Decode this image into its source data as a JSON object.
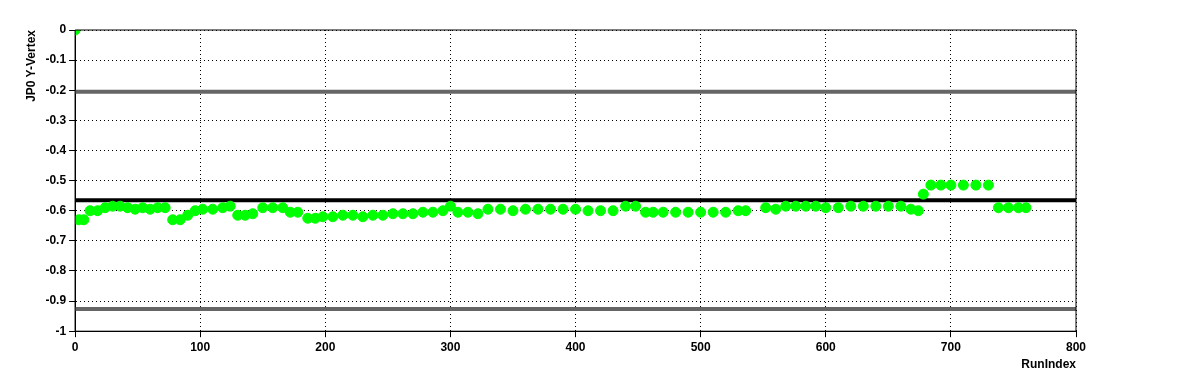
{
  "chart_data": {
    "type": "scatter",
    "xlabel": "RunIndex",
    "ylabel": "JP0 Y-Vertex",
    "xlim": [
      0,
      800
    ],
    "xticks": [
      0,
      100,
      200,
      300,
      400,
      500,
      600,
      700,
      800
    ],
    "ylim": [
      -1,
      0
    ],
    "yticks": [
      -1,
      -0.9,
      -0.8,
      -0.7,
      -0.6,
      -0.5,
      -0.4,
      -0.3,
      -0.2,
      -0.1,
      0
    ],
    "grid": true,
    "legend": false,
    "marker": "circle",
    "ref_lines": [
      {
        "axis": "y",
        "value": -0.205,
        "color": "#666666"
      },
      {
        "axis": "y",
        "value": -0.565,
        "color": "#000000"
      },
      {
        "axis": "y",
        "value": -0.926,
        "color": "#666666"
      }
    ],
    "series": [
      {
        "color": "#00ff00",
        "x": [
          0,
          3,
          7,
          12,
          18,
          24,
          30,
          36,
          42,
          48,
          54,
          60,
          66,
          72,
          78,
          84,
          90,
          96,
          102,
          110,
          118,
          124,
          130,
          136,
          142,
          150,
          158,
          166,
          172,
          178,
          186,
          192,
          198,
          206,
          214,
          222,
          230,
          238,
          246,
          254,
          262,
          270,
          278,
          286,
          294,
          300,
          306,
          314,
          322,
          330,
          340,
          350,
          360,
          370,
          380,
          390,
          400,
          410,
          420,
          430,
          440,
          448,
          456,
          462,
          470,
          480,
          490,
          500,
          510,
          520,
          530,
          536,
          552,
          560,
          568,
          576,
          584,
          592,
          600,
          610,
          620,
          630,
          640,
          650,
          660,
          668,
          674,
          678,
          684,
          692,
          700,
          710,
          720,
          730,
          738,
          746,
          754,
          760
        ],
        "values": [
          0,
          -0.63,
          -0.63,
          -0.6,
          -0.6,
          -0.59,
          -0.585,
          -0.585,
          -0.59,
          -0.595,
          -0.59,
          -0.595,
          -0.59,
          -0.59,
          -0.63,
          -0.63,
          -0.615,
          -0.6,
          -0.595,
          -0.595,
          -0.59,
          -0.585,
          -0.615,
          -0.615,
          -0.61,
          -0.59,
          -0.59,
          -0.59,
          -0.605,
          -0.605,
          -0.625,
          -0.625,
          -0.62,
          -0.62,
          -0.615,
          -0.615,
          -0.62,
          -0.615,
          -0.615,
          -0.61,
          -0.61,
          -0.61,
          -0.605,
          -0.605,
          -0.6,
          -0.585,
          -0.605,
          -0.605,
          -0.61,
          -0.595,
          -0.595,
          -0.6,
          -0.595,
          -0.595,
          -0.595,
          -0.595,
          -0.595,
          -0.6,
          -0.6,
          -0.6,
          -0.585,
          -0.585,
          -0.605,
          -0.605,
          -0.605,
          -0.605,
          -0.605,
          -0.605,
          -0.605,
          -0.605,
          -0.6,
          -0.6,
          -0.59,
          -0.595,
          -0.585,
          -0.585,
          -0.585,
          -0.585,
          -0.59,
          -0.59,
          -0.585,
          -0.585,
          -0.585,
          -0.585,
          -0.585,
          -0.595,
          -0.6,
          -0.545,
          -0.515,
          -0.515,
          -0.515,
          -0.515,
          -0.515,
          -0.515,
          -0.59,
          -0.59,
          -0.59,
          -0.59
        ]
      }
    ]
  }
}
